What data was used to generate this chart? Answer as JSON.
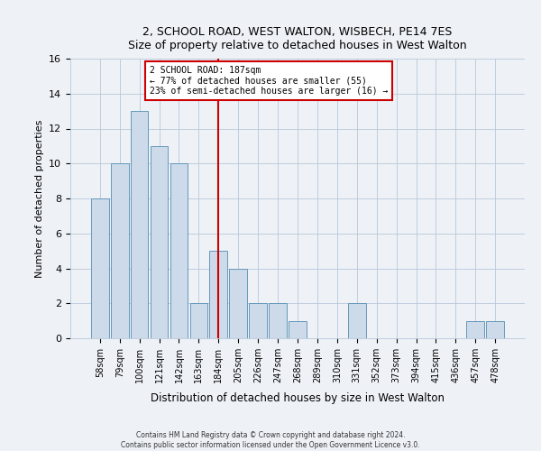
{
  "title1": "2, SCHOOL ROAD, WEST WALTON, WISBECH, PE14 7ES",
  "title2": "Size of property relative to detached houses in West Walton",
  "xlabel": "Distribution of detached houses by size in West Walton",
  "ylabel": "Number of detached properties",
  "categories": [
    "58sqm",
    "79sqm",
    "100sqm",
    "121sqm",
    "142sqm",
    "163sqm",
    "184sqm",
    "205sqm",
    "226sqm",
    "247sqm",
    "268sqm",
    "289sqm",
    "310sqm",
    "331sqm",
    "352sqm",
    "373sqm",
    "394sqm",
    "415sqm",
    "436sqm",
    "457sqm",
    "478sqm"
  ],
  "values": [
    8,
    10,
    13,
    11,
    10,
    2,
    5,
    4,
    2,
    2,
    1,
    0,
    0,
    2,
    0,
    0,
    0,
    0,
    0,
    1,
    1
  ],
  "bar_color": "#ccdaea",
  "bar_edgecolor": "#6699bb",
  "redline_index": 6,
  "annotation_line1": "2 SCHOOL ROAD: 187sqm",
  "annotation_line2": "← 77% of detached houses are smaller (55)",
  "annotation_line3": "23% of semi-detached houses are larger (16) →",
  "footer1": "Contains HM Land Registry data © Crown copyright and database right 2024.",
  "footer2": "Contains public sector information licensed under the Open Government Licence v3.0.",
  "ylim": [
    0,
    16
  ],
  "yticks": [
    0,
    2,
    4,
    6,
    8,
    10,
    12,
    14,
    16
  ],
  "background_color": "#eef2f7",
  "plot_background": "#eef2f7"
}
